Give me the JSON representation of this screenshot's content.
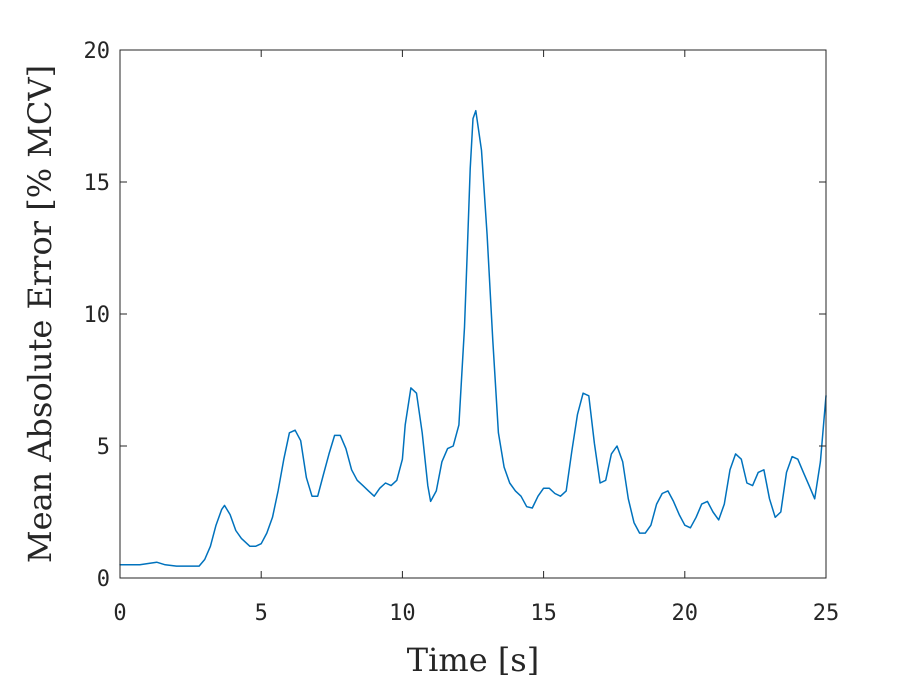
{
  "chart_data": {
    "type": "line",
    "title": "",
    "xlabel": "Time [s]",
    "ylabel": "Mean Absolute Error [% MCV]",
    "xlim": [
      0,
      25
    ],
    "ylim": [
      0,
      20
    ],
    "xticks": [
      0,
      5,
      10,
      15,
      20,
      25
    ],
    "yticks": [
      0,
      5,
      10,
      15,
      20
    ],
    "xtick_labels": [
      "0",
      "5",
      "10",
      "15",
      "20",
      "25"
    ],
    "ytick_labels": [
      "0",
      "5",
      "10",
      "15",
      "20"
    ],
    "grid": false,
    "box": true,
    "series": [
      {
        "color": "#0072BD",
        "x": [
          0,
          0.3,
          0.7,
          1.0,
          1.3,
          1.6,
          2.0,
          2.5,
          2.8,
          3.0,
          3.2,
          3.4,
          3.6,
          3.7,
          3.9,
          4.1,
          4.3,
          4.6,
          4.8,
          5.0,
          5.2,
          5.4,
          5.6,
          5.8,
          6.0,
          6.2,
          6.4,
          6.6,
          6.8,
          7.0,
          7.2,
          7.4,
          7.6,
          7.8,
          8.0,
          8.2,
          8.4,
          8.6,
          8.8,
          9.0,
          9.2,
          9.4,
          9.6,
          9.8,
          10.0,
          10.1,
          10.3,
          10.5,
          10.7,
          10.9,
          11.0,
          11.2,
          11.4,
          11.6,
          11.8,
          12.0,
          12.2,
          12.3,
          12.4,
          12.5,
          12.6,
          12.8,
          13.0,
          13.2,
          13.4,
          13.6,
          13.8,
          14.0,
          14.2,
          14.4,
          14.6,
          14.8,
          15.0,
          15.2,
          15.4,
          15.6,
          15.8,
          16.0,
          16.2,
          16.4,
          16.6,
          16.8,
          17.0,
          17.2,
          17.4,
          17.6,
          17.8,
          18.0,
          18.2,
          18.4,
          18.6,
          18.8,
          19.0,
          19.2,
          19.4,
          19.6,
          19.8,
          20.0,
          20.2,
          20.4,
          20.6,
          20.8,
          21.0,
          21.2,
          21.4,
          21.6,
          21.8,
          22.0,
          22.2,
          22.4,
          22.6,
          22.8,
          23.0,
          23.2,
          23.4,
          23.6,
          23.8,
          24.0,
          24.2,
          24.4,
          24.6,
          24.8,
          25.0
        ],
        "values": [
          0.5,
          0.5,
          0.5,
          0.55,
          0.6,
          0.5,
          0.45,
          0.45,
          0.45,
          0.7,
          1.2,
          2.0,
          2.6,
          2.75,
          2.4,
          1.8,
          1.5,
          1.2,
          1.2,
          1.3,
          1.7,
          2.3,
          3.3,
          4.5,
          5.5,
          5.6,
          5.2,
          3.8,
          3.1,
          3.1,
          3.9,
          4.7,
          5.4,
          5.4,
          4.9,
          4.1,
          3.7,
          3.5,
          3.3,
          3.1,
          3.4,
          3.6,
          3.5,
          3.7,
          4.5,
          5.8,
          7.2,
          7.0,
          5.5,
          3.5,
          2.9,
          3.3,
          4.4,
          4.9,
          5.0,
          5.8,
          9.5,
          12.5,
          15.5,
          17.4,
          17.7,
          16.2,
          13.0,
          9.0,
          5.5,
          4.2,
          3.6,
          3.3,
          3.1,
          2.7,
          2.65,
          3.1,
          3.4,
          3.4,
          3.2,
          3.1,
          3.3,
          4.8,
          6.2,
          7.0,
          6.9,
          5.1,
          3.6,
          3.7,
          4.7,
          5.0,
          4.4,
          3.0,
          2.1,
          1.7,
          1.7,
          2.0,
          2.8,
          3.2,
          3.3,
          2.9,
          2.4,
          2.0,
          1.9,
          2.3,
          2.8,
          2.9,
          2.5,
          2.2,
          2.8,
          4.1,
          4.7,
          4.5,
          3.6,
          3.5,
          4.0,
          4.1,
          3.0,
          2.3,
          2.5,
          4.0,
          4.6,
          4.5,
          4.0,
          3.5,
          3.0,
          4.4,
          6.9
        ]
      }
    ]
  }
}
